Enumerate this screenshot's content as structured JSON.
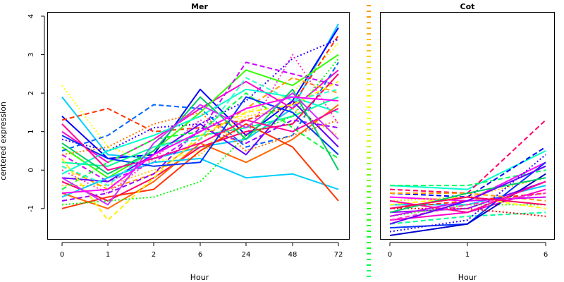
{
  "chart_data": [
    {
      "type": "line",
      "title": "Mer",
      "xlabel": "Hour",
      "ylabel": "centered expression",
      "categories": [
        "0",
        "1",
        "2",
        "6",
        "24",
        "48",
        "72"
      ],
      "ylim": [
        -1.8,
        4.1
      ],
      "yticks": [
        -1,
        0,
        1,
        2,
        3,
        4
      ],
      "grid": false,
      "legend": "none",
      "series": [
        {
          "values": [
            1.9,
            0.4,
            0.3,
            0.6,
            0.8,
            1.6,
            3.8
          ],
          "color": "#00ccff",
          "dash": "solid"
        },
        {
          "values": [
            1.4,
            0.3,
            0.4,
            2.1,
            0.9,
            1.8,
            3.7
          ],
          "color": "#0000ff",
          "dash": "solid"
        },
        {
          "values": [
            2.2,
            0.6,
            0.2,
            0.5,
            1.5,
            2.0,
            3.3
          ],
          "color": "#ffff00",
          "dash": "dotted"
        },
        {
          "values": [
            1.3,
            1.6,
            1.0,
            1.1,
            1.3,
            1.7,
            3.5
          ],
          "color": "#ff3300",
          "dash": "dashed"
        },
        {
          "values": [
            1.0,
            0.2,
            0.8,
            1.6,
            2.3,
            1.6,
            2.6
          ],
          "color": "#ff00cc",
          "dash": "solid"
        },
        {
          "values": [
            0.8,
            0.5,
            1.1,
            1.2,
            1.8,
            2.9,
            3.4
          ],
          "color": "#3300ff",
          "dash": "dotted"
        },
        {
          "values": [
            0.6,
            -0.2,
            0.5,
            1.5,
            2.6,
            2.2,
            3.0
          ],
          "color": "#33ff00",
          "dash": "solid"
        },
        {
          "values": [
            0.5,
            0.9,
            1.7,
            1.6,
            0.6,
            0.9,
            2.8
          ],
          "color": "#0066ff",
          "dash": "dashed"
        },
        {
          "values": [
            0.4,
            -0.3,
            0.2,
            1.0,
            2.8,
            2.5,
            2.2
          ],
          "color": "#cc00ff",
          "dash": "dashed"
        },
        {
          "values": [
            0.2,
            0.1,
            0.6,
            0.9,
            1.1,
            1.4,
            1.9
          ],
          "color": "#00ff99",
          "dash": "solid"
        },
        {
          "values": [
            0.1,
            -0.5,
            -0.1,
            0.8,
            1.6,
            2.4,
            2.0
          ],
          "color": "#ff9900",
          "dash": "dashed"
        },
        {
          "values": [
            0.0,
            -0.6,
            0.3,
            1.3,
            0.9,
            3.0,
            1.2
          ],
          "color": "#ff33cc",
          "dash": "dotted"
        },
        {
          "values": [
            -0.1,
            0.5,
            0.9,
            1.4,
            2.1,
            1.9,
            1.5
          ],
          "color": "#00ffcc",
          "dash": "solid"
        },
        {
          "values": [
            -0.2,
            -0.3,
            0.4,
            1.2,
            0.4,
            1.8,
            0.6
          ],
          "color": "#6600ff",
          "dash": "solid"
        },
        {
          "values": [
            -0.3,
            -0.8,
            -0.2,
            0.6,
            1.0,
            1.2,
            2.5
          ],
          "color": "#ff0066",
          "dash": "solid"
        },
        {
          "values": [
            -0.4,
            -0.4,
            0.0,
            0.4,
            1.4,
            1.6,
            0.9
          ],
          "color": "#ffcc00",
          "dash": "dotted"
        },
        {
          "values": [
            -0.5,
            0.2,
            0.8,
            1.0,
            2.0,
            1.1,
            0.3
          ],
          "color": "#00ff33",
          "dash": "dashed"
        },
        {
          "values": [
            -0.6,
            -1.0,
            -0.3,
            0.7,
            0.2,
            0.8,
            1.7
          ],
          "color": "#ff6600",
          "dash": "solid"
        },
        {
          "values": [
            -0.7,
            -0.2,
            0.2,
            0.3,
            -0.2,
            -0.1,
            -0.5
          ],
          "color": "#00ccff",
          "dash": "solid"
        },
        {
          "values": [
            -0.8,
            -0.6,
            -0.1,
            1.1,
            0.7,
            1.3,
            1.1
          ],
          "color": "#9900ff",
          "dash": "dashed"
        },
        {
          "values": [
            -1.0,
            -0.7,
            -0.5,
            0.5,
            1.2,
            0.6,
            -0.8
          ],
          "color": "#ff3300",
          "dash": "solid"
        },
        {
          "values": [
            -0.9,
            -0.8,
            -0.7,
            -0.3,
            0.9,
            1.4,
            2.9
          ],
          "color": "#00ff00",
          "dash": "dotted"
        },
        {
          "values": [
            0.3,
            -1.3,
            -0.2,
            0.9,
            1.5,
            1.7,
            2.3
          ],
          "color": "#ffee00",
          "dash": "dashed"
        },
        {
          "values": [
            0.9,
            0.3,
            0.1,
            0.2,
            1.9,
            1.5,
            0.4
          ],
          "color": "#0033ff",
          "dash": "solid"
        },
        {
          "values": [
            0.7,
            -0.1,
            0.5,
            1.9,
            0.8,
            2.1,
            0.0
          ],
          "color": "#00cc66",
          "dash": "solid"
        },
        {
          "values": [
            1.2,
            0.0,
            0.3,
            0.7,
            1.3,
            1.0,
            1.6
          ],
          "color": "#ff0099",
          "dash": "solid"
        },
        {
          "values": [
            -0.2,
            -0.9,
            0.7,
            1.7,
            1.1,
            2.0,
            0.8
          ],
          "color": "#cc33ff",
          "dash": "solid"
        },
        {
          "values": [
            0.1,
            -0.4,
            0.6,
            0.8,
            2.4,
            1.8,
            2.1
          ],
          "color": "#33ffcc",
          "dash": "dashed"
        },
        {
          "values": [
            0.4,
            0.6,
            1.2,
            1.5,
            0.5,
            0.9,
            1.3
          ],
          "color": "#ff7700",
          "dash": "dotted"
        },
        {
          "values": [
            -0.6,
            -0.5,
            0.4,
            1.0,
            1.6,
            1.9,
            1.8
          ],
          "color": "#ff00ff",
          "dash": "solid"
        }
      ]
    },
    {
      "type": "line",
      "title": "Cot",
      "xlabel": "Hour",
      "ylabel": "",
      "categories": [
        "0",
        "1",
        "6"
      ],
      "ylim": [
        -1.8,
        4.1
      ],
      "yticks": [],
      "grid": false,
      "legend": "none",
      "series": [
        {
          "values": [
            -0.4,
            -0.5,
            0.5
          ],
          "color": "#00ffcc",
          "dash": "solid"
        },
        {
          "values": [
            -0.4,
            -0.4,
            0.0
          ],
          "color": "#00ff66",
          "dash": "dashed"
        },
        {
          "values": [
            -0.5,
            -0.6,
            1.3
          ],
          "color": "#ff0066",
          "dash": "dashed"
        },
        {
          "values": [
            -0.6,
            -0.7,
            0.6
          ],
          "color": "#0000ff",
          "dash": "dashed"
        },
        {
          "values": [
            -0.7,
            -0.8,
            0.2
          ],
          "color": "#ff00ff",
          "dash": "solid"
        },
        {
          "values": [
            -0.8,
            -0.7,
            -0.2
          ],
          "color": "#ffcc00",
          "dash": "dotted"
        },
        {
          "values": [
            -0.9,
            -0.9,
            -0.4
          ],
          "color": "#00ccff",
          "dash": "solid"
        },
        {
          "values": [
            -1.0,
            -0.8,
            -0.6
          ],
          "color": "#ff3300",
          "dash": "dashed"
        },
        {
          "values": [
            -1.1,
            -1.0,
            -0.3
          ],
          "color": "#9900ff",
          "dash": "solid"
        },
        {
          "values": [
            -1.2,
            -0.9,
            -0.9
          ],
          "color": "#33ff00",
          "dash": "dotted"
        },
        {
          "values": [
            -1.3,
            -1.1,
            -0.5
          ],
          "color": "#ff00cc",
          "dash": "solid"
        },
        {
          "values": [
            -1.4,
            -1.2,
            -1.1
          ],
          "color": "#00ff99",
          "dash": "dashed"
        },
        {
          "values": [
            -1.5,
            -1.4,
            0.2
          ],
          "color": "#0033ff",
          "dash": "solid"
        },
        {
          "values": [
            -1.6,
            -1.3,
            0.4
          ],
          "color": "#3300ff",
          "dash": "dotted"
        },
        {
          "values": [
            -1.7,
            -1.4,
            -0.1
          ],
          "color": "#0000cc",
          "dash": "solid"
        },
        {
          "values": [
            -0.6,
            -0.6,
            -0.8
          ],
          "color": "#ff9900",
          "dash": "dashed"
        },
        {
          "values": [
            -0.9,
            -0.7,
            -1.0
          ],
          "color": "#ffff00",
          "dash": "dashed"
        },
        {
          "values": [
            -1.0,
            -1.0,
            -1.2
          ],
          "color": "#ff0000",
          "dash": "dotted"
        },
        {
          "values": [
            -1.2,
            -0.8,
            -0.7
          ],
          "color": "#cc00ff",
          "dash": "solid"
        },
        {
          "values": [
            -0.8,
            -1.1,
            -0.3
          ],
          "color": "#ff0099",
          "dash": "solid"
        },
        {
          "values": [
            -1.1,
            -0.6,
            -0.2
          ],
          "color": "#00cc66",
          "dash": "solid"
        },
        {
          "values": [
            -1.3,
            -0.9,
            -0.6
          ],
          "color": "#ff33cc",
          "dash": "dashed"
        },
        {
          "values": [
            -1.4,
            -0.8,
            0.1
          ],
          "color": "#6600ff",
          "dash": "solid"
        },
        {
          "values": [
            -1.0,
            -0.7,
            -0.9
          ],
          "color": "#ff0066",
          "dash": "solid"
        }
      ]
    }
  ],
  "separator": {
    "colors": [
      "#ff9900",
      "#ffaa00",
      "#ffbb00",
      "#ffcc00",
      "#ffdd00",
      "#ffee00",
      "#ffff00",
      "#eeff00",
      "#ccff00",
      "#aaff00",
      "#88ff00",
      "#66ff00",
      "#44ff00",
      "#22ff00",
      "#00ff00",
      "#00ff22",
      "#00ff44",
      "#00ff66"
    ]
  }
}
